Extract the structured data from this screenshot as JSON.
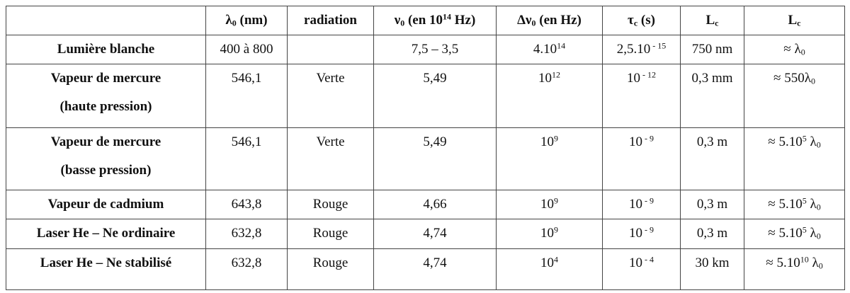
{
  "table": {
    "header": [
      [],
      [
        "λ",
        {
          "sub": "0"
        },
        " (nm)"
      ],
      [
        "radiation"
      ],
      [
        "ν",
        {
          "sub": "0"
        },
        " (en 10",
        {
          "sup": "14"
        },
        " Hz)"
      ],
      [
        "Δν",
        {
          "sub": "0"
        },
        " (en Hz)"
      ],
      [
        "τ",
        {
          "sub": "c"
        },
        " (s)"
      ],
      [
        "L",
        {
          "sub": "c"
        }
      ],
      [
        "L",
        {
          "sub": "c"
        }
      ]
    ],
    "rows": [
      [
        [
          "Lumière blanche"
        ],
        [
          "400 à 800"
        ],
        [],
        [
          "7,5 – 3,5"
        ],
        [
          "4.10",
          {
            "sup": "14"
          }
        ],
        [
          "2,5.10",
          {
            "sup": " - 15"
          }
        ],
        [
          "750 nm"
        ],
        [
          "≈ λ",
          {
            "sub": "0"
          }
        ]
      ],
      [
        [
          {
            "line": "Vapeur de mercure"
          },
          {
            "line": "(haute pression)"
          }
        ],
        [
          "546,1"
        ],
        [
          "Verte"
        ],
        [
          "5,49"
        ],
        [
          "10",
          {
            "sup": "12"
          }
        ],
        [
          "10",
          {
            "sup": " - 12"
          }
        ],
        [
          "0,3 mm"
        ],
        [
          "≈ 550λ",
          {
            "sub": "0"
          }
        ]
      ],
      [
        [
          {
            "line": "Vapeur de mercure"
          },
          {
            "line": "(basse pression)"
          }
        ],
        [
          "546,1"
        ],
        [
          "Verte"
        ],
        [
          "5,49"
        ],
        [
          "10",
          {
            "sup": "9"
          }
        ],
        [
          "10",
          {
            "sup": " - 9"
          }
        ],
        [
          "0,3 m"
        ],
        [
          "≈ 5.10",
          {
            "sup": "5"
          },
          " λ",
          {
            "sub": "0"
          }
        ]
      ],
      [
        [
          "Vapeur de cadmium"
        ],
        [
          "643,8"
        ],
        [
          "Rouge"
        ],
        [
          "4,66"
        ],
        [
          "10",
          {
            "sup": "9"
          }
        ],
        [
          "10",
          {
            "sup": " - 9"
          }
        ],
        [
          "0,3 m"
        ],
        [
          "≈ 5.10",
          {
            "sup": "5"
          },
          " λ",
          {
            "sub": "0"
          }
        ]
      ],
      [
        [
          "Laser He – Ne ordinaire"
        ],
        [
          "632,8"
        ],
        [
          "Rouge"
        ],
        [
          "4,74"
        ],
        [
          "10",
          {
            "sup": "9"
          }
        ],
        [
          "10",
          {
            "sup": " - 9"
          }
        ],
        [
          "0,3 m"
        ],
        [
          "≈ 5.10",
          {
            "sup": "5"
          },
          " λ",
          {
            "sub": "0"
          }
        ]
      ],
      [
        [
          "Laser He – Ne stabilisé"
        ],
        [
          "632,8"
        ],
        [
          "Rouge"
        ],
        [
          "4,74"
        ],
        [
          "10",
          {
            "sup": "4"
          }
        ],
        [
          "10",
          {
            "sup": " - 4"
          }
        ],
        [
          "30 km"
        ],
        [
          "≈ 5.10",
          {
            "sup": "10"
          },
          " λ",
          {
            "sub": "0"
          }
        ]
      ]
    ]
  }
}
